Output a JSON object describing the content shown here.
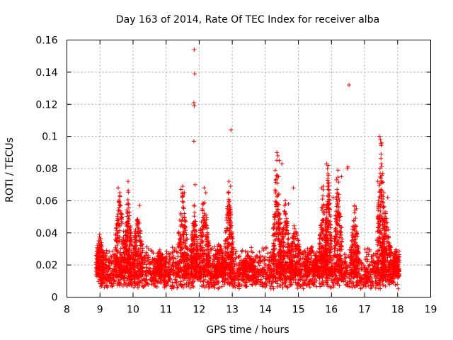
{
  "chart_data": {
    "type": "scatter",
    "title": "Day 163 of 2014, Rate Of TEC Index for receiver alba",
    "xlabel": "GPS time / hours",
    "ylabel": "ROTI / TECUs",
    "xlim": [
      8,
      19
    ],
    "ylim": [
      0,
      0.16
    ],
    "x_ticks": [
      "8",
      "9",
      "10",
      "11",
      "12",
      "13",
      "14",
      "15",
      "16",
      "17",
      "18",
      "19"
    ],
    "y_ticks": [
      "0",
      "0.02",
      "0.04",
      "0.06",
      "0.08",
      "0.1",
      "0.12",
      "0.14",
      "0.16"
    ],
    "x_tick_values": [
      8,
      9,
      10,
      11,
      12,
      13,
      14,
      15,
      16,
      17,
      18,
      19
    ],
    "y_tick_values": [
      0,
      0.02,
      0.04,
      0.06,
      0.08,
      0.1,
      0.12,
      0.14,
      0.16
    ],
    "grid": true,
    "marker": "+",
    "color": "#ff0000",
    "series": [
      {
        "name": "ROTI",
        "outliers": [
          [
            11.85,
            0.154
          ],
          [
            11.86,
            0.139
          ],
          [
            11.84,
            0.121
          ],
          [
            11.85,
            0.119
          ],
          [
            11.84,
            0.097
          ],
          [
            11.88,
            0.07
          ],
          [
            12.96,
            0.104
          ],
          [
            16.53,
            0.132
          ],
          [
            16.5,
            0.081
          ],
          [
            16.48,
            0.08
          ],
          [
            17.45,
            0.1
          ],
          [
            17.48,
            0.098
          ],
          [
            17.52,
            0.096
          ],
          [
            17.5,
            0.089
          ],
          [
            17.55,
            0.077
          ],
          [
            17.4,
            0.072
          ],
          [
            17.58,
            0.065
          ],
          [
            14.35,
            0.09
          ],
          [
            14.38,
            0.088
          ],
          [
            14.42,
            0.085
          ],
          [
            14.5,
            0.083
          ],
          [
            14.3,
            0.079
          ],
          [
            14.4,
            0.075
          ],
          [
            14.85,
            0.068
          ],
          [
            15.85,
            0.083
          ],
          [
            15.9,
            0.082
          ],
          [
            15.88,
            0.08
          ],
          [
            16.2,
            0.079
          ],
          [
            16.15,
            0.073
          ],
          [
            16.3,
            0.075
          ],
          [
            9.85,
            0.072
          ],
          [
            9.55,
            0.068
          ],
          [
            9.6,
            0.065
          ],
          [
            10.2,
            0.057
          ],
          [
            11.5,
            0.069
          ],
          [
            11.45,
            0.067
          ],
          [
            11.55,
            0.065
          ],
          [
            12.15,
            0.068
          ],
          [
            12.2,
            0.065
          ],
          [
            12.9,
            0.072
          ],
          [
            12.95,
            0.069
          ],
          [
            15.75,
            0.069
          ],
          [
            15.7,
            0.068
          ],
          [
            16.05,
            0.062
          ],
          [
            14.6,
            0.06
          ],
          [
            14.7,
            0.058
          ],
          [
            17.7,
            0.062
          ],
          [
            16.7,
            0.057
          ],
          [
            16.75,
            0.055
          ],
          [
            12.85,
            0.055
          ]
        ],
        "clusters": [
          {
            "center": 9.0,
            "width": 0.12,
            "peak": 0.041
          },
          {
            "center": 9.6,
            "width": 0.15,
            "peak": 0.067
          },
          {
            "center": 9.85,
            "width": 0.1,
            "peak": 0.07
          },
          {
            "center": 10.15,
            "width": 0.15,
            "peak": 0.055
          },
          {
            "center": 10.8,
            "width": 0.15,
            "peak": 0.03
          },
          {
            "center": 11.5,
            "width": 0.15,
            "peak": 0.067
          },
          {
            "center": 11.85,
            "width": 0.1,
            "peak": 0.06
          },
          {
            "center": 12.15,
            "width": 0.15,
            "peak": 0.066
          },
          {
            "center": 12.6,
            "width": 0.15,
            "peak": 0.035
          },
          {
            "center": 12.9,
            "width": 0.12,
            "peak": 0.072
          },
          {
            "center": 13.5,
            "width": 0.2,
            "peak": 0.027
          },
          {
            "center": 14.35,
            "width": 0.12,
            "peak": 0.089
          },
          {
            "center": 14.6,
            "width": 0.15,
            "peak": 0.06
          },
          {
            "center": 14.9,
            "width": 0.15,
            "peak": 0.05
          },
          {
            "center": 15.4,
            "width": 0.2,
            "peak": 0.032
          },
          {
            "center": 15.75,
            "width": 0.12,
            "peak": 0.068
          },
          {
            "center": 15.9,
            "width": 0.1,
            "peak": 0.082
          },
          {
            "center": 16.2,
            "width": 0.12,
            "peak": 0.078
          },
          {
            "center": 16.7,
            "width": 0.12,
            "peak": 0.057
          },
          {
            "center": 17.5,
            "width": 0.12,
            "peak": 0.099
          },
          {
            "center": 17.65,
            "width": 0.15,
            "peak": 0.055
          },
          {
            "center": 17.95,
            "width": 0.1,
            "peak": 0.03
          }
        ],
        "baseline": {
          "x_start": 8.95,
          "x_end": 18.05,
          "y_min": 0.005,
          "y_max": 0.033
        }
      }
    ]
  }
}
